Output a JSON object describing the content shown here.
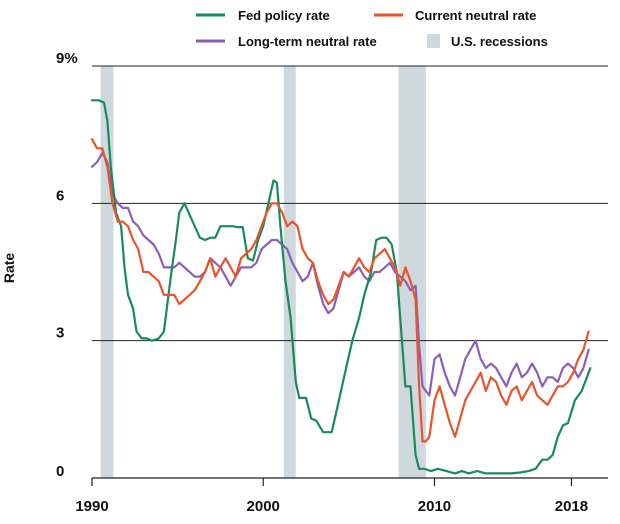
{
  "chart_data": {
    "type": "line",
    "title": "",
    "xlabel": "",
    "ylabel": "Rate",
    "xlim": [
      1990,
      2019.2
    ],
    "ylim": [
      0,
      9
    ],
    "x_ticks": [
      1990,
      2000,
      2010,
      2018
    ],
    "x_tick_labels": [
      "1990",
      "2000",
      "2010",
      "2018"
    ],
    "y_ticks": [
      0,
      3,
      6,
      9
    ],
    "y_tick_labels": [
      "0",
      "3",
      "6",
      "9%"
    ],
    "grid": "horizontal",
    "legend_position": "top",
    "recessions_label": "U.S. recessions",
    "recessions": [
      [
        1990.5,
        1991.25
      ],
      [
        2001.2,
        2001.9
      ],
      [
        2007.9,
        2009.5
      ]
    ],
    "series": [
      {
        "name": "Fed policy rate",
        "color": "#1a8a5a",
        "x": [
          1990.0,
          1990.4,
          1990.7,
          1990.9,
          1991.1,
          1991.4,
          1991.7,
          1991.9,
          1992.1,
          1992.4,
          1992.6,
          1992.9,
          1993.2,
          1993.5,
          1993.9,
          1994.2,
          1994.6,
          1994.9,
          1995.1,
          1995.4,
          1995.7,
          1996.0,
          1996.3,
          1996.6,
          1996.9,
          1997.2,
          1997.5,
          1997.9,
          1998.2,
          1998.5,
          1998.8,
          1999.1,
          1999.4,
          1999.7,
          2000.0,
          2000.3,
          2000.6,
          2000.8,
          2001.0,
          2001.3,
          2001.6,
          2001.9,
          2002.1,
          2002.5,
          2002.8,
          2003.1,
          2003.5,
          2003.8,
          2004.0,
          2004.3,
          2004.6,
          2004.9,
          2005.2,
          2005.6,
          2005.9,
          2006.3,
          2006.6,
          2006.9,
          2007.2,
          2007.5,
          2007.8,
          2008.0,
          2008.3,
          2008.6,
          2008.9,
          2009.1,
          2009.4,
          2009.8,
          2010.2,
          2010.7,
          2011.2,
          2011.6,
          2012.0,
          2012.5,
          2013.0,
          2013.5,
          2014.0,
          2014.5,
          2015.0,
          2015.5,
          2015.9,
          2016.3,
          2016.6,
          2016.9,
          2017.2,
          2017.5,
          2017.8,
          2018.2,
          2018.6,
          2018.9,
          2019.1
        ],
        "values": [
          8.25,
          8.25,
          8.2,
          7.8,
          6.8,
          5.8,
          5.5,
          4.6,
          4.0,
          3.7,
          3.2,
          3.05,
          3.05,
          3.0,
          3.05,
          3.2,
          4.4,
          5.2,
          5.8,
          6.0,
          5.75,
          5.5,
          5.25,
          5.2,
          5.25,
          5.25,
          5.5,
          5.5,
          5.5,
          5.48,
          5.48,
          4.8,
          4.75,
          5.2,
          5.5,
          6.0,
          6.5,
          6.45,
          5.5,
          4.3,
          3.5,
          2.1,
          1.75,
          1.75,
          1.3,
          1.25,
          1.0,
          1.0,
          1.0,
          1.5,
          2.0,
          2.5,
          3.0,
          3.5,
          4.0,
          4.5,
          5.2,
          5.25,
          5.25,
          5.1,
          4.5,
          3.5,
          2.0,
          2.0,
          0.5,
          0.2,
          0.2,
          0.15,
          0.2,
          0.15,
          0.1,
          0.15,
          0.1,
          0.15,
          0.1,
          0.1,
          0.1,
          0.1,
          0.12,
          0.15,
          0.2,
          0.4,
          0.4,
          0.5,
          0.9,
          1.15,
          1.2,
          1.7,
          1.9,
          2.2,
          2.4
        ]
      },
      {
        "name": "Current neutral rate",
        "color": "#e8542b",
        "x": [
          1990.0,
          1990.3,
          1990.6,
          1990.9,
          1991.2,
          1991.5,
          1991.8,
          1992.1,
          1992.4,
          1992.7,
          1993.0,
          1993.3,
          1993.6,
          1993.9,
          1994.2,
          1994.5,
          1994.8,
          1995.1,
          1995.4,
          1995.7,
          1996.0,
          1996.3,
          1996.6,
          1996.9,
          1997.2,
          1997.5,
          1997.8,
          1998.1,
          1998.4,
          1998.7,
          1999.0,
          1999.3,
          1999.6,
          1999.9,
          2000.2,
          2000.5,
          2000.8,
          2001.1,
          2001.4,
          2001.7,
          2002.0,
          2002.3,
          2002.6,
          2002.9,
          2003.2,
          2003.5,
          2003.8,
          2004.1,
          2004.4,
          2004.7,
          2005.0,
          2005.3,
          2005.6,
          2005.9,
          2006.2,
          2006.5,
          2006.8,
          2007.1,
          2007.4,
          2007.7,
          2008.0,
          2008.3,
          2008.6,
          2008.9,
          2009.1,
          2009.3,
          2009.5,
          2009.7,
          2010.0,
          2010.3,
          2010.6,
          2010.9,
          2011.2,
          2011.5,
          2011.8,
          2012.1,
          2012.4,
          2012.7,
          2013.0,
          2013.3,
          2013.6,
          2013.9,
          2014.2,
          2014.5,
          2014.8,
          2015.1,
          2015.4,
          2015.7,
          2016.0,
          2016.3,
          2016.6,
          2016.9,
          2017.2,
          2017.5,
          2017.8,
          2018.1,
          2018.4,
          2018.7,
          2019.0
        ],
        "values": [
          7.4,
          7.2,
          7.2,
          6.8,
          6.0,
          5.6,
          5.6,
          5.5,
          5.2,
          5.0,
          4.5,
          4.5,
          4.4,
          4.3,
          4.0,
          4.0,
          4.0,
          3.8,
          3.9,
          4.0,
          4.1,
          4.3,
          4.5,
          4.8,
          4.4,
          4.6,
          4.8,
          4.6,
          4.4,
          4.8,
          4.9,
          5.0,
          5.2,
          5.5,
          5.8,
          6.0,
          6.0,
          5.8,
          5.5,
          5.6,
          5.5,
          5.0,
          4.8,
          4.7,
          4.3,
          4.0,
          3.8,
          3.9,
          4.2,
          4.5,
          4.4,
          4.6,
          4.8,
          4.6,
          4.5,
          4.8,
          4.9,
          5.0,
          4.8,
          4.6,
          4.2,
          4.6,
          4.3,
          3.9,
          2.0,
          0.8,
          0.8,
          0.9,
          1.7,
          2.0,
          1.6,
          1.2,
          0.9,
          1.3,
          1.7,
          1.9,
          2.1,
          2.3,
          1.9,
          2.2,
          2.1,
          1.8,
          1.6,
          1.9,
          2.0,
          1.7,
          1.9,
          2.1,
          1.8,
          1.7,
          1.6,
          1.8,
          2.0,
          2.0,
          2.1,
          2.3,
          2.6,
          2.8,
          3.2
        ]
      },
      {
        "name": "Long-term neutral rate",
        "color": "#8b5fb8",
        "x": [
          1990.0,
          1990.3,
          1990.6,
          1990.9,
          1991.2,
          1991.5,
          1991.8,
          1992.1,
          1992.4,
          1992.7,
          1993.0,
          1993.3,
          1993.6,
          1993.9,
          1994.2,
          1994.5,
          1994.8,
          1995.1,
          1995.4,
          1995.7,
          1996.0,
          1996.3,
          1996.6,
          1996.9,
          1997.2,
          1997.5,
          1997.8,
          1998.1,
          1998.4,
          1998.7,
          1999.0,
          1999.3,
          1999.6,
          1999.9,
          2000.2,
          2000.5,
          2000.8,
          2001.1,
          2001.4,
          2001.7,
          2002.0,
          2002.3,
          2002.6,
          2002.9,
          2003.2,
          2003.5,
          2003.8,
          2004.1,
          2004.4,
          2004.7,
          2005.0,
          2005.3,
          2005.6,
          2005.9,
          2006.2,
          2006.5,
          2006.8,
          2007.1,
          2007.4,
          2007.7,
          2008.0,
          2008.3,
          2008.6,
          2008.9,
          2009.1,
          2009.3,
          2009.5,
          2009.7,
          2010.0,
          2010.3,
          2010.6,
          2010.9,
          2011.2,
          2011.5,
          2011.8,
          2012.1,
          2012.4,
          2012.7,
          2013.0,
          2013.3,
          2013.6,
          2013.9,
          2014.2,
          2014.5,
          2014.8,
          2015.1,
          2015.4,
          2015.7,
          2016.0,
          2016.3,
          2016.6,
          2016.9,
          2017.2,
          2017.5,
          2017.8,
          2018.1,
          2018.4,
          2018.7,
          2019.0
        ],
        "values": [
          6.8,
          6.9,
          7.1,
          6.9,
          6.2,
          6.0,
          5.9,
          5.9,
          5.6,
          5.5,
          5.3,
          5.2,
          5.1,
          4.9,
          4.6,
          4.6,
          4.6,
          4.7,
          4.6,
          4.5,
          4.4,
          4.4,
          4.5,
          4.8,
          4.7,
          4.6,
          4.4,
          4.2,
          4.4,
          4.6,
          4.6,
          4.6,
          4.7,
          5.0,
          5.1,
          5.2,
          5.2,
          5.1,
          5.0,
          4.7,
          4.5,
          4.3,
          4.4,
          4.7,
          4.2,
          3.8,
          3.6,
          3.7,
          4.1,
          4.5,
          4.4,
          4.5,
          4.6,
          4.4,
          4.3,
          4.5,
          4.5,
          4.6,
          4.7,
          4.5,
          4.4,
          4.3,
          4.1,
          4.2,
          2.9,
          2.0,
          1.9,
          1.8,
          2.6,
          2.7,
          2.3,
          2.0,
          1.8,
          2.2,
          2.6,
          2.8,
          3.0,
          2.6,
          2.4,
          2.5,
          2.4,
          2.2,
          2.0,
          2.3,
          2.5,
          2.2,
          2.3,
          2.5,
          2.3,
          2.0,
          2.2,
          2.2,
          2.1,
          2.4,
          2.5,
          2.4,
          2.2,
          2.4,
          2.8
        ]
      }
    ]
  }
}
